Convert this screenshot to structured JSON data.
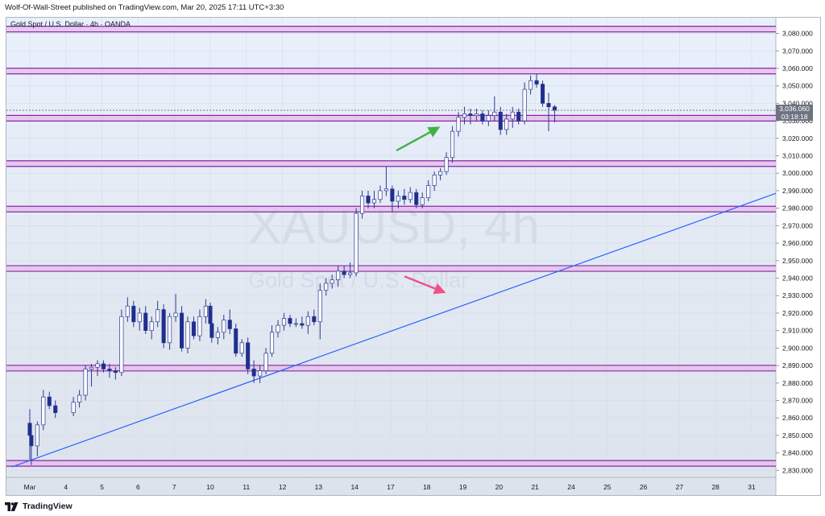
{
  "publisher_line": "Wolf-Of-Wall-Street published on TradingView.com, Mar 20, 2025 17:11 UTC+3:30",
  "symbol_line": "Gold Spot / U.S. Dollar · 4h · OANDA",
  "watermark": {
    "symbol": "XAUUSD, 4h",
    "description": "Gold Spot / U.S. Dollar"
  },
  "brand": "TradingView",
  "current_price": {
    "value": "3,036.060",
    "countdown": "03:18:18"
  },
  "colors": {
    "background_top": "#e8f0fb",
    "background_bottom": "#dde3ec",
    "candle_up_fill": "#ffffff",
    "candle_down_fill": "#1f2d8f",
    "candle_outline": "#2c3a8f",
    "level_line": "#8e24aa",
    "level_band": "#e1bee7",
    "trendline": "#2962ff",
    "arrow_green": "#43b047",
    "arrow_pink": "#f0508a",
    "price_tag": "#6d7380"
  },
  "chart_data": {
    "type": "candlestick",
    "title": "Gold Spot / U.S. Dollar · 4h · OANDA",
    "xlabel": "",
    "ylabel": "",
    "ylim": [
      2826,
      3089
    ],
    "y_ticks": [
      "3,080.000",
      "3,070.000",
      "3,060.000",
      "3,050.000",
      "3,040.000",
      "3,030.000",
      "3,020.000",
      "3,010.000",
      "3,000.000",
      "2,990.000",
      "2,980.000",
      "2,970.000",
      "2,960.000",
      "2,950.000",
      "2,940.000",
      "2,930.000",
      "2,920.000",
      "2,910.000",
      "2,900.000",
      "2,890.000",
      "2,880.000",
      "2,870.000",
      "2,860.000",
      "2,850.000",
      "2,840.000",
      "2,830.000"
    ],
    "x_labels": [
      "Mar",
      "4",
      "5",
      "6",
      "7",
      "10",
      "11",
      "12",
      "13",
      "14",
      "17",
      "18",
      "19",
      "20",
      "21",
      "24",
      "25",
      "26",
      "27",
      "28",
      "31"
    ],
    "grid": true,
    "horizontal_levels": [
      3082.5,
      3058.5,
      3031.5,
      3005.5,
      2979.5,
      2945.5,
      2888.5,
      2834.0
    ],
    "trendline": {
      "start": {
        "date": "Mar 2",
        "price": 2832.0
      },
      "end": {
        "date": "Mar 31",
        "price": 2988.5
      }
    },
    "arrows": [
      {
        "color": "green",
        "from": {
          "date": "Mar 17",
          "price": 3013.0
        },
        "to": {
          "date": "Mar 18",
          "price": 3026.0
        }
      },
      {
        "color": "pink",
        "from": {
          "date": "Mar 17",
          "price": 2941.0
        },
        "to": {
          "date": "Mar 18",
          "price": 2932.0
        }
      }
    ],
    "candles": [
      {
        "x": "Mar 2 21:00",
        "o": 2857,
        "h": 2865,
        "l": 2836,
        "c": 2850
      },
      {
        "x": "Mar 3 01:00",
        "o": 2850,
        "h": 2853,
        "l": 2833,
        "c": 2844
      },
      {
        "x": "Mar 3 05:00",
        "o": 2844,
        "h": 2858,
        "l": 2838,
        "c": 2856
      },
      {
        "x": "Mar 3 09:00",
        "o": 2856,
        "h": 2876,
        "l": 2853,
        "c": 2872
      },
      {
        "x": "Mar 3 13:00",
        "o": 2872,
        "h": 2875,
        "l": 2865,
        "c": 2867
      },
      {
        "x": "Mar 3 17:00",
        "o": 2867,
        "h": 2870,
        "l": 2860,
        "c": 2863
      },
      {
        "x": "Mar 4 05:00",
        "o": 2863,
        "h": 2872,
        "l": 2861,
        "c": 2869
      },
      {
        "x": "Mar 4 09:00",
        "o": 2869,
        "h": 2876,
        "l": 2866,
        "c": 2873
      },
      {
        "x": "Mar 4 13:00",
        "o": 2873,
        "h": 2890,
        "l": 2870,
        "c": 2888
      },
      {
        "x": "Mar 4 17:00",
        "o": 2888,
        "h": 2891,
        "l": 2878,
        "c": 2889
      },
      {
        "x": "Mar 4 21:00",
        "o": 2889,
        "h": 2893,
        "l": 2884,
        "c": 2891
      },
      {
        "x": "Mar 5 01:00",
        "o": 2891,
        "h": 2893,
        "l": 2886,
        "c": 2888
      },
      {
        "x": "Mar 5 05:00",
        "o": 2888,
        "h": 2891,
        "l": 2883,
        "c": 2887
      },
      {
        "x": "Mar 5 09:00",
        "o": 2887,
        "h": 2889,
        "l": 2882,
        "c": 2886
      },
      {
        "x": "Mar 5 13:00",
        "o": 2886,
        "h": 2922,
        "l": 2884,
        "c": 2918
      },
      {
        "x": "Mar 5 17:00",
        "o": 2918,
        "h": 2929,
        "l": 2915,
        "c": 2924
      },
      {
        "x": "Mar 5 21:00",
        "o": 2924,
        "h": 2927,
        "l": 2912,
        "c": 2915
      },
      {
        "x": "Mar 6 01:00",
        "o": 2915,
        "h": 2923,
        "l": 2910,
        "c": 2920
      },
      {
        "x": "Mar 6 05:00",
        "o": 2920,
        "h": 2924,
        "l": 2908,
        "c": 2910
      },
      {
        "x": "Mar 6 09:00",
        "o": 2910,
        "h": 2918,
        "l": 2905,
        "c": 2915
      },
      {
        "x": "Mar 6 13:00",
        "o": 2915,
        "h": 2927,
        "l": 2912,
        "c": 2922
      },
      {
        "x": "Mar 6 17:00",
        "o": 2922,
        "h": 2925,
        "l": 2900,
        "c": 2903
      },
      {
        "x": "Mar 6 21:00",
        "o": 2903,
        "h": 2920,
        "l": 2899,
        "c": 2918
      },
      {
        "x": "Mar 7 01:00",
        "o": 2918,
        "h": 2931,
        "l": 2915,
        "c": 2920
      },
      {
        "x": "Mar 7 05:00",
        "o": 2920,
        "h": 2924,
        "l": 2898,
        "c": 2900
      },
      {
        "x": "Mar 7 09:00",
        "o": 2900,
        "h": 2918,
        "l": 2897,
        "c": 2915
      },
      {
        "x": "Mar 7 13:00",
        "o": 2915,
        "h": 2918,
        "l": 2905,
        "c": 2907
      },
      {
        "x": "Mar 7 17:00",
        "o": 2907,
        "h": 2922,
        "l": 2904,
        "c": 2918
      },
      {
        "x": "Mar 7 21:00",
        "o": 2918,
        "h": 2928,
        "l": 2914,
        "c": 2924
      },
      {
        "x": "Mar 8 01:00",
        "o": 2924,
        "h": 2926,
        "l": 2920,
        "c": 2922
      },
      {
        "x": "Mar 9 21:00",
        "o": 2922,
        "h": 2925,
        "l": 2912,
        "c": 2914
      },
      {
        "x": "Mar 10 01:00",
        "o": 2914,
        "h": 2918,
        "l": 2903,
        "c": 2906
      },
      {
        "x": "Mar 10 05:00",
        "o": 2906,
        "h": 2912,
        "l": 2902,
        "c": 2909
      },
      {
        "x": "Mar 10 09:00",
        "o": 2909,
        "h": 2919,
        "l": 2905,
        "c": 2916
      },
      {
        "x": "Mar 10 13:00",
        "o": 2916,
        "h": 2922,
        "l": 2908,
        "c": 2911
      },
      {
        "x": "Mar 10 17:00",
        "o": 2911,
        "h": 2914,
        "l": 2895,
        "c": 2897
      },
      {
        "x": "Mar 10 21:00",
        "o": 2897,
        "h": 2905,
        "l": 2895,
        "c": 2903
      },
      {
        "x": "Mar 11 01:00",
        "o": 2903,
        "h": 2906,
        "l": 2885,
        "c": 2888
      },
      {
        "x": "Mar 11 05:00",
        "o": 2888,
        "h": 2893,
        "l": 2880,
        "c": 2884
      },
      {
        "x": "Mar 11 09:00",
        "o": 2884,
        "h": 2890,
        "l": 2880,
        "c": 2887
      },
      {
        "x": "Mar 11 13:00",
        "o": 2887,
        "h": 2900,
        "l": 2885,
        "c": 2897
      },
      {
        "x": "Mar 11 17:00",
        "o": 2897,
        "h": 2913,
        "l": 2895,
        "c": 2909
      },
      {
        "x": "Mar 11 21:00",
        "o": 2909,
        "h": 2916,
        "l": 2906,
        "c": 2913
      },
      {
        "x": "Mar 12 01:00",
        "o": 2913,
        "h": 2920,
        "l": 2910,
        "c": 2917
      },
      {
        "x": "Mar 12 05:00",
        "o": 2917,
        "h": 2919,
        "l": 2912,
        "c": 2914
      },
      {
        "x": "Mar 12 09:00",
        "o": 2914,
        "h": 2917,
        "l": 2912,
        "c": 2914
      },
      {
        "x": "Mar 12 13:00",
        "o": 2914,
        "h": 2918,
        "l": 2911,
        "c": 2913
      },
      {
        "x": "Mar 12 17:00",
        "o": 2913,
        "h": 2921,
        "l": 2908,
        "c": 2918
      },
      {
        "x": "Mar 12 21:00",
        "o": 2918,
        "h": 2922,
        "l": 2913,
        "c": 2915
      },
      {
        "x": "Mar 13 01:00",
        "o": 2915,
        "h": 2937,
        "l": 2905,
        "c": 2933
      },
      {
        "x": "Mar 13 05:00",
        "o": 2933,
        "h": 2940,
        "l": 2930,
        "c": 2937
      },
      {
        "x": "Mar 13 09:00",
        "o": 2937,
        "h": 2942,
        "l": 2934,
        "c": 2939
      },
      {
        "x": "Mar 13 13:00",
        "o": 2939,
        "h": 2947,
        "l": 2935,
        "c": 2944
      },
      {
        "x": "Mar 13 17:00",
        "o": 2944,
        "h": 2947,
        "l": 2940,
        "c": 2942
      },
      {
        "x": "Mar 13 21:00",
        "o": 2942,
        "h": 2949,
        "l": 2940,
        "c": 2943
      },
      {
        "x": "Mar 14 01:00",
        "o": 2943,
        "h": 2980,
        "l": 2941,
        "c": 2977
      },
      {
        "x": "Mar 14 05:00",
        "o": 2977,
        "h": 2990,
        "l": 2974,
        "c": 2987
      },
      {
        "x": "Mar 14 09:00",
        "o": 2987,
        "h": 2990,
        "l": 2980,
        "c": 2983
      },
      {
        "x": "Mar 14 13:00",
        "o": 2983,
        "h": 2990,
        "l": 2980,
        "c": 2985
      },
      {
        "x": "Mar 14 17:00",
        "o": 2985,
        "h": 2993,
        "l": 2983,
        "c": 2990
      },
      {
        "x": "Mar 14 21:00",
        "o": 2990,
        "h": 3004,
        "l": 2987,
        "c": 2991
      },
      {
        "x": "Mar 17 01:00",
        "o": 2991,
        "h": 2993,
        "l": 2978,
        "c": 2984
      },
      {
        "x": "Mar 17 05:00",
        "o": 2984,
        "h": 2990,
        "l": 2980,
        "c": 2987
      },
      {
        "x": "Mar 17 09:00",
        "o": 2987,
        "h": 2991,
        "l": 2982,
        "c": 2985
      },
      {
        "x": "Mar 17 13:00",
        "o": 2985,
        "h": 2992,
        "l": 2983,
        "c": 2989
      },
      {
        "x": "Mar 17 17:00",
        "o": 2989,
        "h": 2991,
        "l": 2980,
        "c": 2982
      },
      {
        "x": "Mar 17 21:00",
        "o": 2982,
        "h": 2989,
        "l": 2980,
        "c": 2986
      },
      {
        "x": "Mar 18 01:00",
        "o": 2986,
        "h": 2996,
        "l": 2984,
        "c": 2993
      },
      {
        "x": "Mar 18 05:00",
        "o": 2993,
        "h": 3001,
        "l": 2990,
        "c": 2999
      },
      {
        "x": "Mar 18 09:00",
        "o": 2999,
        "h": 3003,
        "l": 2996,
        "c": 3001
      },
      {
        "x": "Mar 18 13:00",
        "o": 3001,
        "h": 3012,
        "l": 2999,
        "c": 3009
      },
      {
        "x": "Mar 18 17:00",
        "o": 3009,
        "h": 3027,
        "l": 3006,
        "c": 3024
      },
      {
        "x": "Mar 18 21:00",
        "o": 3024,
        "h": 3035,
        "l": 3021,
        "c": 3032
      },
      {
        "x": "Mar 19 01:00",
        "o": 3032,
        "h": 3038,
        "l": 3028,
        "c": 3034
      },
      {
        "x": "Mar 19 05:00",
        "o": 3034,
        "h": 3037,
        "l": 3028,
        "c": 3033
      },
      {
        "x": "Mar 19 09:00",
        "o": 3033,
        "h": 3037,
        "l": 3030,
        "c": 3034
      },
      {
        "x": "Mar 19 13:00",
        "o": 3034,
        "h": 3036,
        "l": 3028,
        "c": 3030
      },
      {
        "x": "Mar 19 17:00",
        "o": 3030,
        "h": 3036,
        "l": 3027,
        "c": 3033
      },
      {
        "x": "Mar 19 21:00",
        "o": 3033,
        "h": 3044,
        "l": 3030,
        "c": 3035
      },
      {
        "x": "Mar 20 01:00",
        "o": 3035,
        "h": 3038,
        "l": 3022,
        "c": 3025
      },
      {
        "x": "Mar 20 05:00",
        "o": 3025,
        "h": 3034,
        "l": 3022,
        "c": 3031
      },
      {
        "x": "Mar 20 09:00",
        "o": 3031,
        "h": 3038,
        "l": 3026,
        "c": 3035
      },
      {
        "x": "Mar 20 13:00",
        "o": 3035,
        "h": 3037,
        "l": 3028,
        "c": 3030
      },
      {
        "x": "Mar 20 17:00",
        "o": 3030,
        "h": 3052,
        "l": 3028,
        "c": 3048
      },
      {
        "x": "Mar 20 21:00",
        "o": 3048,
        "h": 3056,
        "l": 3045,
        "c": 3053
      },
      {
        "x": "Mar 21 01:00",
        "o": 3053,
        "h": 3057,
        "l": 3049,
        "c": 3051
      },
      {
        "x": "Mar 21 05:00",
        "o": 3051,
        "h": 3053,
        "l": 3038,
        "c": 3040
      },
      {
        "x": "Mar 21 09:00",
        "o": 3040,
        "h": 3046,
        "l": 3024,
        "c": 3038
      },
      {
        "x": "Mar 21 13:00",
        "o": 3038,
        "h": 3039,
        "l": 3029,
        "c": 3036
      }
    ]
  }
}
